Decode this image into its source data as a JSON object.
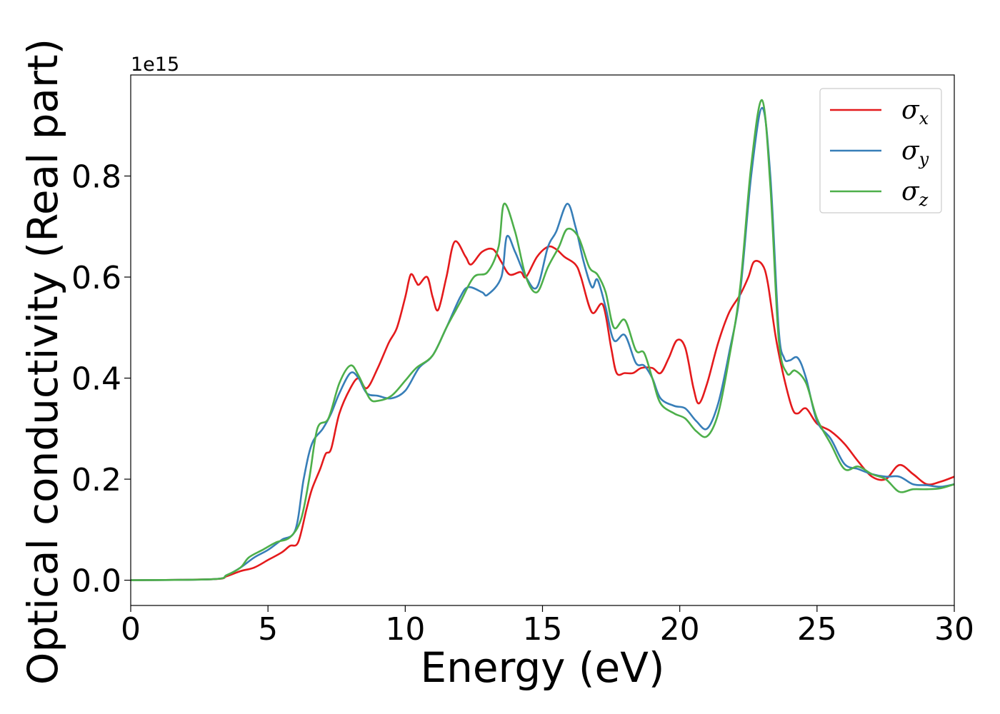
{
  "chart_data": {
    "type": "line",
    "xlabel": "Energy (eV)",
    "ylabel": "Optical conductivity (Real part)",
    "y_offset_label": "1e15",
    "xlim": [
      0,
      30
    ],
    "ylim": [
      -0.05,
      1.0
    ],
    "x_ticks": [
      0,
      5,
      10,
      15,
      20,
      25,
      30
    ],
    "x_tick_labels": [
      "0",
      "5",
      "10",
      "15",
      "20",
      "25",
      "30"
    ],
    "y_ticks": [
      0.0,
      0.2,
      0.4,
      0.6,
      0.8
    ],
    "y_tick_labels": [
      "0.0",
      "0.2",
      "0.4",
      "0.6",
      "0.8"
    ],
    "grid": false,
    "legend_position": "top-right",
    "series": [
      {
        "name": "σx",
        "legend_base": "σ",
        "legend_sub": "x",
        "color": "#e41a1c",
        "points": [
          [
            0,
            0
          ],
          [
            3,
            0.002
          ],
          [
            3.5,
            0.008
          ],
          [
            4,
            0.018
          ],
          [
            4.5,
            0.025
          ],
          [
            5,
            0.04
          ],
          [
            5.5,
            0.055
          ],
          [
            5.8,
            0.068
          ],
          [
            6.1,
            0.075
          ],
          [
            6.4,
            0.14
          ],
          [
            6.6,
            0.18
          ],
          [
            6.9,
            0.22
          ],
          [
            7.1,
            0.25
          ],
          [
            7.3,
            0.26
          ],
          [
            7.6,
            0.33
          ],
          [
            8.0,
            0.38
          ],
          [
            8.3,
            0.4
          ],
          [
            8.6,
            0.38
          ],
          [
            9.0,
            0.42
          ],
          [
            9.4,
            0.47
          ],
          [
            9.7,
            0.5
          ],
          [
            10.0,
            0.56
          ],
          [
            10.2,
            0.605
          ],
          [
            10.4,
            0.59
          ],
          [
            10.5,
            0.585
          ],
          [
            10.8,
            0.6
          ],
          [
            11.0,
            0.56
          ],
          [
            11.2,
            0.535
          ],
          [
            11.5,
            0.6
          ],
          [
            11.8,
            0.67
          ],
          [
            12.2,
            0.64
          ],
          [
            12.4,
            0.625
          ],
          [
            12.8,
            0.65
          ],
          [
            13.2,
            0.655
          ],
          [
            13.5,
            0.63
          ],
          [
            13.8,
            0.605
          ],
          [
            14.2,
            0.61
          ],
          [
            14.4,
            0.6
          ],
          [
            14.8,
            0.64
          ],
          [
            15.2,
            0.66
          ],
          [
            15.5,
            0.655
          ],
          [
            15.8,
            0.64
          ],
          [
            16.2,
            0.625
          ],
          [
            16.4,
            0.6
          ],
          [
            16.8,
            0.53
          ],
          [
            17.2,
            0.545
          ],
          [
            17.5,
            0.46
          ],
          [
            17.7,
            0.41
          ],
          [
            18.0,
            0.41
          ],
          [
            18.3,
            0.41
          ],
          [
            18.6,
            0.42
          ],
          [
            19.0,
            0.42
          ],
          [
            19.3,
            0.41
          ],
          [
            19.6,
            0.44
          ],
          [
            19.9,
            0.475
          ],
          [
            20.2,
            0.46
          ],
          [
            20.5,
            0.38
          ],
          [
            20.7,
            0.35
          ],
          [
            21.0,
            0.39
          ],
          [
            21.4,
            0.47
          ],
          [
            21.8,
            0.53
          ],
          [
            22.2,
            0.565
          ],
          [
            22.5,
            0.6
          ],
          [
            22.7,
            0.63
          ],
          [
            23.0,
            0.625
          ],
          [
            23.2,
            0.59
          ],
          [
            23.5,
            0.48
          ],
          [
            23.8,
            0.4
          ],
          [
            24.1,
            0.34
          ],
          [
            24.3,
            0.33
          ],
          [
            24.6,
            0.34
          ],
          [
            25.0,
            0.31
          ],
          [
            25.5,
            0.295
          ],
          [
            26.0,
            0.27
          ],
          [
            26.5,
            0.235
          ],
          [
            27.0,
            0.205
          ],
          [
            27.5,
            0.2
          ],
          [
            28.0,
            0.228
          ],
          [
            28.5,
            0.21
          ],
          [
            29.0,
            0.19
          ],
          [
            29.5,
            0.195
          ],
          [
            30.0,
            0.205
          ]
        ]
      },
      {
        "name": "σy",
        "legend_base": "σ",
        "legend_sub": "y",
        "color": "#377eb8",
        "points": [
          [
            0,
            0
          ],
          [
            3,
            0.002
          ],
          [
            3.5,
            0.01
          ],
          [
            4,
            0.025
          ],
          [
            4.5,
            0.045
          ],
          [
            5,
            0.06
          ],
          [
            5.5,
            0.08
          ],
          [
            6.0,
            0.1
          ],
          [
            6.3,
            0.2
          ],
          [
            6.6,
            0.27
          ],
          [
            7.0,
            0.3
          ],
          [
            7.3,
            0.33
          ],
          [
            7.6,
            0.37
          ],
          [
            8.0,
            0.41
          ],
          [
            8.3,
            0.4
          ],
          [
            8.6,
            0.37
          ],
          [
            9.0,
            0.365
          ],
          [
            9.5,
            0.36
          ],
          [
            10.0,
            0.375
          ],
          [
            10.5,
            0.42
          ],
          [
            11.0,
            0.445
          ],
          [
            11.5,
            0.5
          ],
          [
            12.0,
            0.56
          ],
          [
            12.3,
            0.58
          ],
          [
            12.8,
            0.57
          ],
          [
            13.0,
            0.565
          ],
          [
            13.5,
            0.6
          ],
          [
            13.7,
            0.68
          ],
          [
            14.0,
            0.65
          ],
          [
            14.4,
            0.6
          ],
          [
            14.8,
            0.58
          ],
          [
            15.2,
            0.66
          ],
          [
            15.5,
            0.69
          ],
          [
            15.9,
            0.745
          ],
          [
            16.2,
            0.7
          ],
          [
            16.5,
            0.63
          ],
          [
            16.8,
            0.58
          ],
          [
            17.0,
            0.595
          ],
          [
            17.3,
            0.54
          ],
          [
            17.6,
            0.475
          ],
          [
            18.0,
            0.485
          ],
          [
            18.4,
            0.43
          ],
          [
            18.7,
            0.425
          ],
          [
            19.0,
            0.4
          ],
          [
            19.3,
            0.36
          ],
          [
            19.8,
            0.345
          ],
          [
            20.2,
            0.34
          ],
          [
            20.6,
            0.315
          ],
          [
            21.0,
            0.3
          ],
          [
            21.4,
            0.35
          ],
          [
            21.8,
            0.45
          ],
          [
            22.2,
            0.57
          ],
          [
            22.6,
            0.8
          ],
          [
            23.0,
            0.935
          ],
          [
            23.3,
            0.8
          ],
          [
            23.6,
            0.5
          ],
          [
            23.8,
            0.44
          ],
          [
            24.0,
            0.435
          ],
          [
            24.3,
            0.44
          ],
          [
            24.6,
            0.4
          ],
          [
            25.0,
            0.315
          ],
          [
            25.5,
            0.28
          ],
          [
            26.0,
            0.23
          ],
          [
            26.5,
            0.22
          ],
          [
            27.0,
            0.21
          ],
          [
            27.5,
            0.205
          ],
          [
            28.0,
            0.205
          ],
          [
            28.5,
            0.19
          ],
          [
            29.0,
            0.188
          ],
          [
            29.5,
            0.185
          ],
          [
            30.0,
            0.19
          ]
        ]
      },
      {
        "name": "σz",
        "legend_base": "σ",
        "legend_sub": "z",
        "color": "#4daf4a",
        "points": [
          [
            0,
            0
          ],
          [
            3,
            0.002
          ],
          [
            3.5,
            0.01
          ],
          [
            4,
            0.025
          ],
          [
            4.3,
            0.045
          ],
          [
            4.8,
            0.06
          ],
          [
            5.3,
            0.075
          ],
          [
            5.8,
            0.085
          ],
          [
            6.2,
            0.12
          ],
          [
            6.5,
            0.2
          ],
          [
            6.8,
            0.3
          ],
          [
            7.2,
            0.32
          ],
          [
            7.6,
            0.39
          ],
          [
            8.0,
            0.425
          ],
          [
            8.3,
            0.405
          ],
          [
            8.7,
            0.36
          ],
          [
            9.0,
            0.355
          ],
          [
            9.5,
            0.365
          ],
          [
            10.0,
            0.395
          ],
          [
            10.4,
            0.42
          ],
          [
            11.0,
            0.445
          ],
          [
            11.5,
            0.5
          ],
          [
            12.0,
            0.55
          ],
          [
            12.5,
            0.6
          ],
          [
            13.0,
            0.61
          ],
          [
            13.4,
            0.66
          ],
          [
            13.6,
            0.745
          ],
          [
            14.0,
            0.69
          ],
          [
            14.4,
            0.6
          ],
          [
            14.8,
            0.57
          ],
          [
            15.2,
            0.62
          ],
          [
            15.6,
            0.66
          ],
          [
            15.9,
            0.695
          ],
          [
            16.3,
            0.68
          ],
          [
            16.7,
            0.62
          ],
          [
            17.0,
            0.605
          ],
          [
            17.3,
            0.57
          ],
          [
            17.6,
            0.5
          ],
          [
            18.0,
            0.515
          ],
          [
            18.4,
            0.455
          ],
          [
            18.7,
            0.45
          ],
          [
            19.0,
            0.4
          ],
          [
            19.3,
            0.35
          ],
          [
            19.8,
            0.33
          ],
          [
            20.2,
            0.32
          ],
          [
            20.6,
            0.295
          ],
          [
            21.0,
            0.285
          ],
          [
            21.4,
            0.33
          ],
          [
            21.8,
            0.44
          ],
          [
            22.2,
            0.58
          ],
          [
            22.6,
            0.82
          ],
          [
            23.0,
            0.95
          ],
          [
            23.3,
            0.78
          ],
          [
            23.6,
            0.48
          ],
          [
            23.9,
            0.41
          ],
          [
            24.2,
            0.415
          ],
          [
            24.6,
            0.39
          ],
          [
            25.0,
            0.32
          ],
          [
            25.5,
            0.27
          ],
          [
            26.0,
            0.22
          ],
          [
            26.5,
            0.225
          ],
          [
            27.0,
            0.21
          ],
          [
            27.5,
            0.2
          ],
          [
            28.0,
            0.175
          ],
          [
            28.5,
            0.18
          ],
          [
            29.0,
            0.18
          ],
          [
            29.5,
            0.182
          ],
          [
            30.0,
            0.19
          ]
        ]
      }
    ]
  }
}
